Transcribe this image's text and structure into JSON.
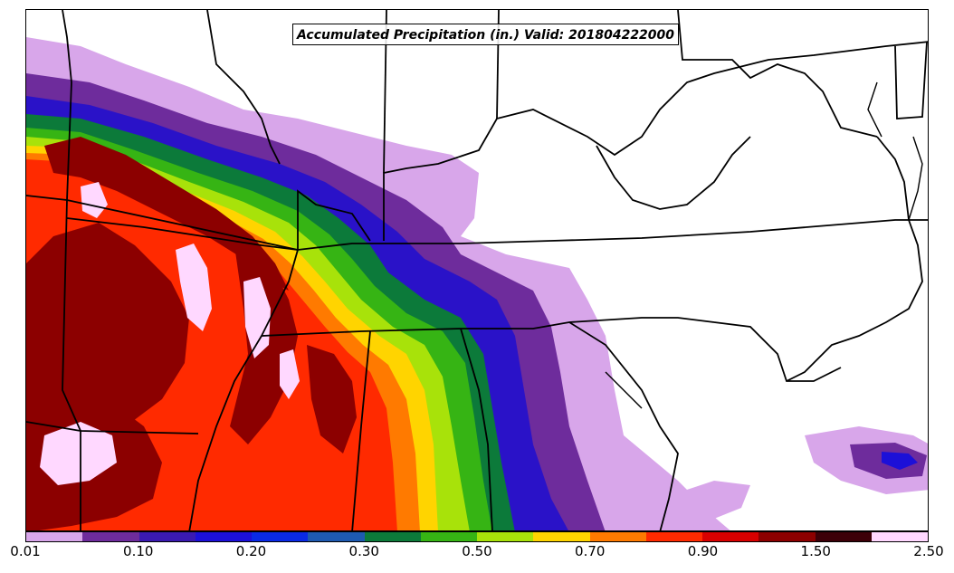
{
  "title": "Accumulated Precipitation (in.) Valid: 201804222000",
  "colorbar": {
    "colors": [
      "#d8a6ea",
      "#6e2c9c",
      "#3a1ab0",
      "#1c10d8",
      "#0a2ae6",
      "#1e5ab0",
      "#0c7a3a",
      "#36b414",
      "#a8e20a",
      "#ffd400",
      "#ff7a00",
      "#ff2a00",
      "#d80000",
      "#8c0000",
      "#3c0008",
      "#ffd8ff"
    ],
    "tick_labels": [
      "0.01",
      "0.10",
      "0.20",
      "0.30",
      "0.50",
      "0.70",
      "0.90",
      "1.50",
      "2.50"
    ]
  },
  "icons": {
    "basemap": "state-boundaries-map"
  }
}
